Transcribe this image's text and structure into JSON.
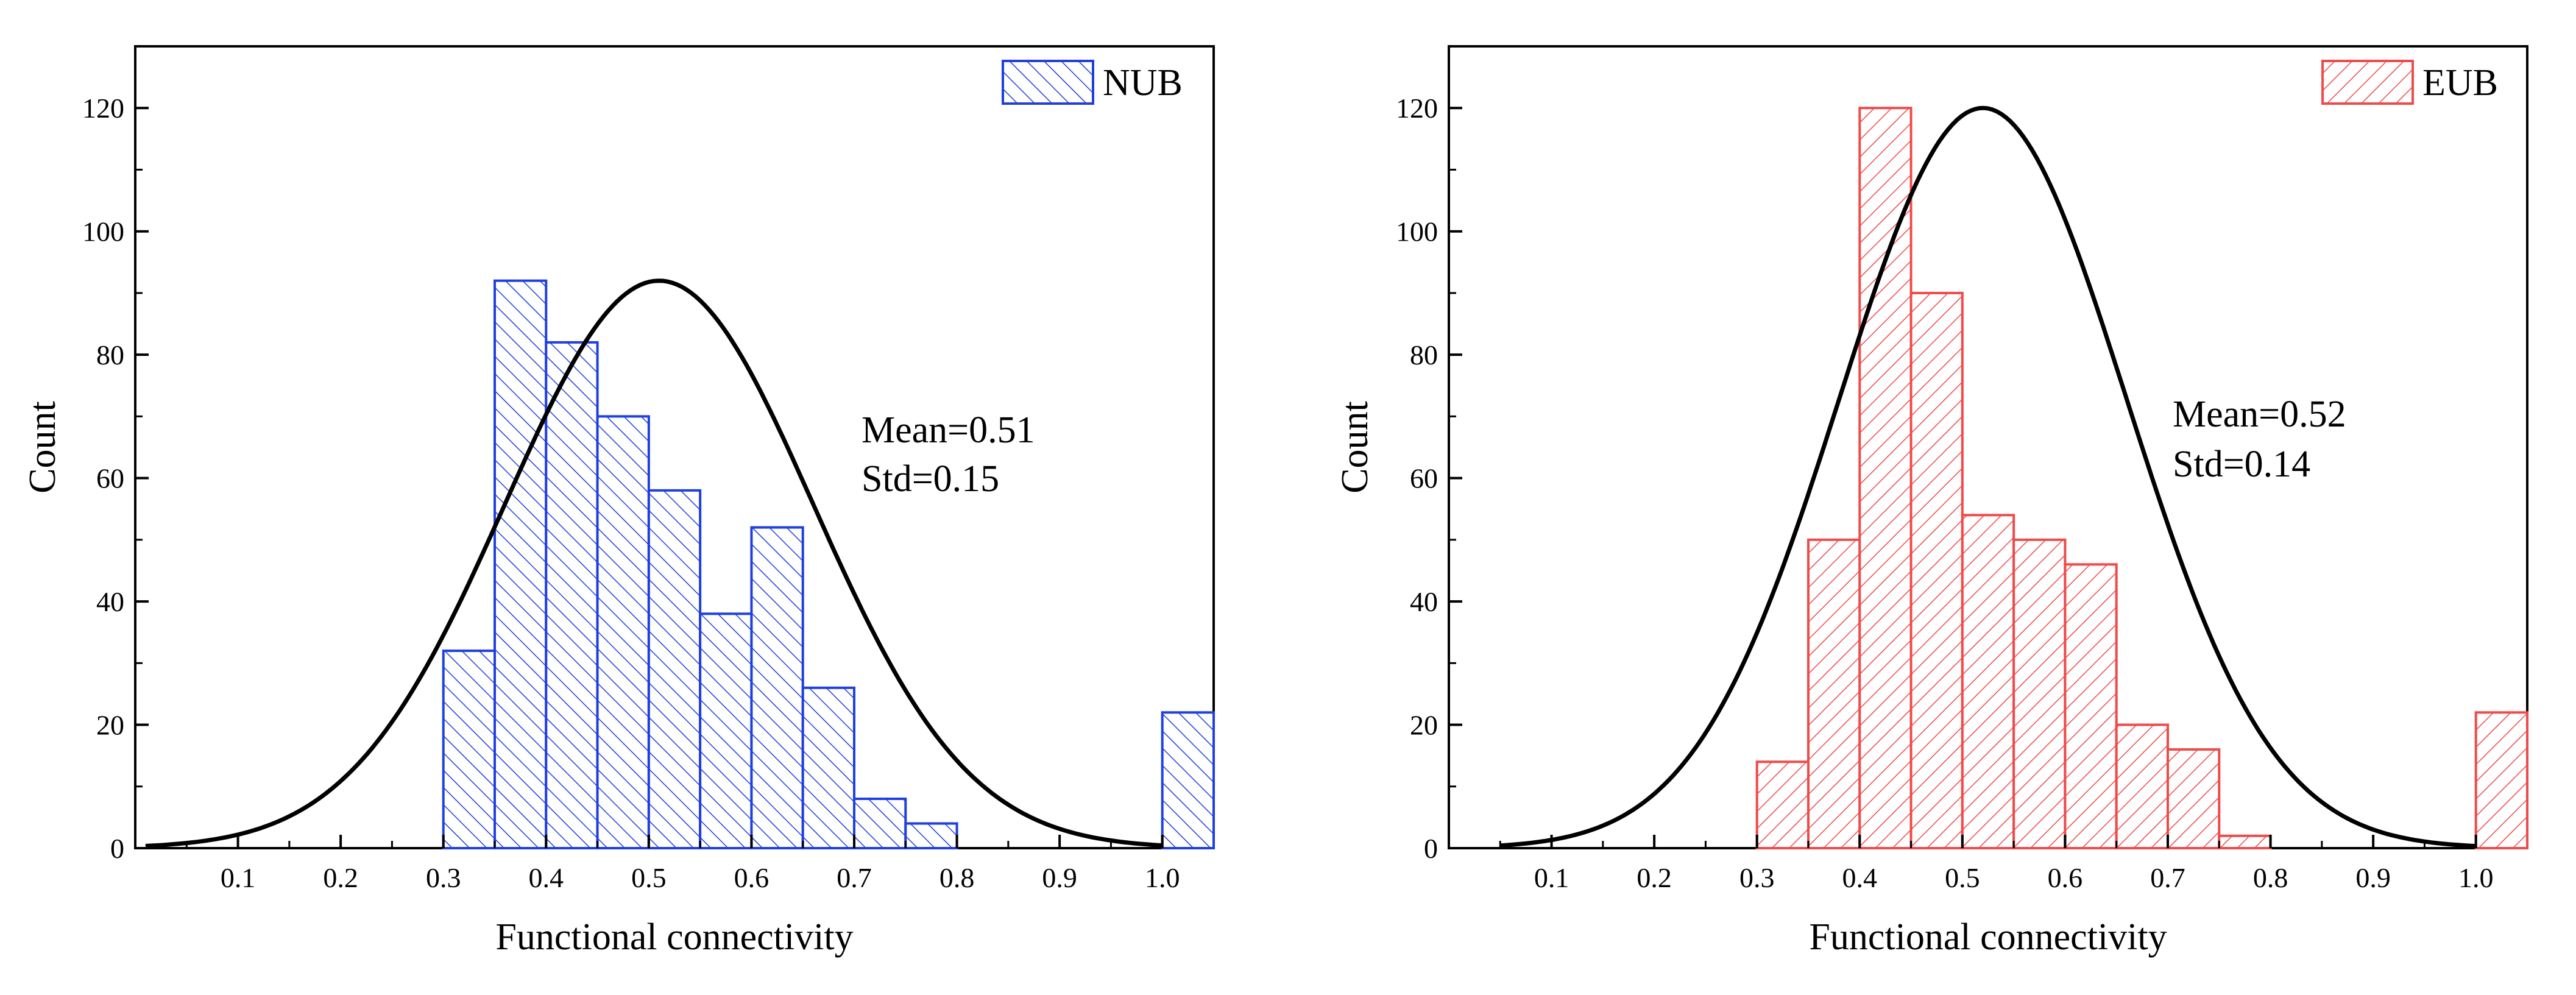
{
  "chart_data": [
    {
      "type": "bar",
      "name": "left-histogram",
      "series_name": "NUB",
      "color": "#1f3fe0",
      "bin_width": 0.05,
      "bins": [
        {
          "x0": 0.3,
          "x1": 0.35,
          "count": 32
        },
        {
          "x0": 0.35,
          "x1": 0.4,
          "count": 92
        },
        {
          "x0": 0.4,
          "x1": 0.45,
          "count": 82
        },
        {
          "x0": 0.45,
          "x1": 0.5,
          "count": 70
        },
        {
          "x0": 0.5,
          "x1": 0.55,
          "count": 58
        },
        {
          "x0": 0.55,
          "x1": 0.6,
          "count": 38
        },
        {
          "x0": 0.6,
          "x1": 0.65,
          "count": 52
        },
        {
          "x0": 0.65,
          "x1": 0.7,
          "count": 26
        },
        {
          "x0": 0.7,
          "x1": 0.75,
          "count": 8
        },
        {
          "x0": 0.75,
          "x1": 0.8,
          "count": 4
        },
        {
          "x0": 1.0,
          "x1": 1.05,
          "count": 22
        }
      ],
      "curve": {
        "type": "normal",
        "mean": 0.51,
        "std": 0.15,
        "peak": 92,
        "x_start": 0.01,
        "x_end": 1.0
      },
      "xlim": [
        0,
        1.05
      ],
      "ylim": [
        0,
        130
      ],
      "xticks": [
        "0.1",
        "0.2",
        "0.3",
        "0.4",
        "0.5",
        "0.6",
        "0.7",
        "0.8",
        "0.9",
        "1.0"
      ],
      "yticks": [
        "0",
        "20",
        "40",
        "60",
        "80",
        "100",
        "120"
      ],
      "xlabel": "Functional connectivity",
      "ylabel": "Count",
      "legend": "NUB",
      "legend_position": "top-right",
      "stats": {
        "mean": "Mean=0.51",
        "std": "Std=0.15"
      },
      "grid": false
    },
    {
      "type": "bar",
      "name": "right-histogram",
      "series_name": "EUB",
      "color": "#f04a4a",
      "bin_width": 0.05,
      "bins": [
        {
          "x0": 0.3,
          "x1": 0.35,
          "count": 14
        },
        {
          "x0": 0.35,
          "x1": 0.4,
          "count": 50
        },
        {
          "x0": 0.4,
          "x1": 0.45,
          "count": 120
        },
        {
          "x0": 0.45,
          "x1": 0.5,
          "count": 90
        },
        {
          "x0": 0.5,
          "x1": 0.55,
          "count": 54
        },
        {
          "x0": 0.55,
          "x1": 0.6,
          "count": 50
        },
        {
          "x0": 0.6,
          "x1": 0.65,
          "count": 46
        },
        {
          "x0": 0.65,
          "x1": 0.7,
          "count": 20
        },
        {
          "x0": 0.7,
          "x1": 0.75,
          "count": 16
        },
        {
          "x0": 0.75,
          "x1": 0.8,
          "count": 2
        },
        {
          "x0": 1.0,
          "x1": 1.05,
          "count": 22
        }
      ],
      "curve": {
        "type": "normal",
        "mean": 0.52,
        "std": 0.14,
        "peak": 120,
        "x_start": 0.05,
        "x_end": 1.0
      },
      "xlim": [
        0,
        1.05
      ],
      "ylim": [
        0,
        130
      ],
      "xticks": [
        "0.1",
        "0.2",
        "0.3",
        "0.4",
        "0.5",
        "0.6",
        "0.7",
        "0.8",
        "0.9",
        "1.0"
      ],
      "yticks": [
        "0",
        "20",
        "40",
        "60",
        "80",
        "100",
        "120"
      ],
      "xlabel": "Functional connectivity",
      "ylabel": "Count",
      "legend": "EUB",
      "legend_position": "top-right",
      "stats": {
        "mean": "Mean=0.52",
        "std": "Std=0.14"
      },
      "grid": false
    }
  ]
}
